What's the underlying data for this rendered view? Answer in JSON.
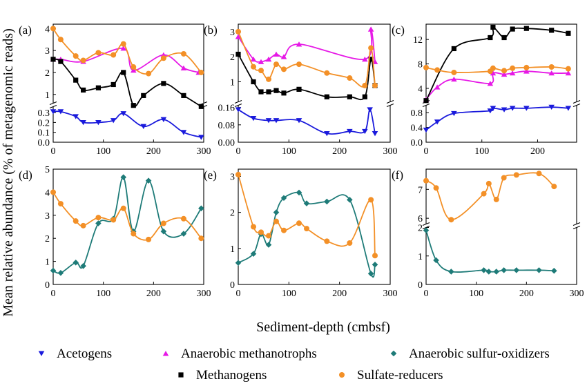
{
  "figure": {
    "ylabel": "Mean relative abundance (% of metagenomic reads)",
    "xlabel": "Sediment-depth (cmbsf)"
  },
  "legend": [
    {
      "name": "Acetogens",
      "marker": "triangle-down",
      "color": "#1a1adc"
    },
    {
      "name": "Anaerobic methanotrophs",
      "marker": "triangle-up",
      "color": "#e619e6"
    },
    {
      "name": "Anaerobic sulfur-oxidizers",
      "marker": "diamond",
      "color": "#1e7b78"
    },
    {
      "name": "Methanogens",
      "marker": "square",
      "color": "#000000"
    },
    {
      "name": "Sulfate-reducers",
      "marker": "circle",
      "color": "#f39027"
    }
  ],
  "chart_data": [
    {
      "type": "scatter",
      "panel_label": "(a)",
      "x_ticks": [
        0,
        100,
        200,
        300
      ],
      "x_tick_labels": [
        "0",
        "100",
        "200",
        "300"
      ],
      "xlim": [
        0,
        300
      ],
      "y_axis_break": true,
      "upper_ylim": [
        0.6,
        4.2
      ],
      "upper_y_ticks": [
        1,
        2,
        3,
        4
      ],
      "upper_y_tick_labels": [
        "1",
        "2",
        "3",
        "4"
      ],
      "lower_ylim": [
        0,
        0.36
      ],
      "lower_y_ticks": [
        0.0,
        0.1,
        0.2,
        0.3
      ],
      "lower_y_tick_labels": [
        "0.0",
        "0.1",
        "0.2",
        "0.3"
      ],
      "series": [
        {
          "name": "Acetogens",
          "region": "lower",
          "x": [
            0,
            15,
            45,
            60,
            90,
            120,
            140,
            180,
            220,
            260,
            295
          ],
          "y": [
            0.31,
            0.31,
            0.26,
            0.2,
            0.2,
            0.22,
            0.29,
            0.16,
            0.23,
            0.1,
            0.05
          ]
        },
        {
          "name": "Anaerobic methanotrophs",
          "region": "upper",
          "x": [
            0,
            15,
            60,
            140,
            160,
            220,
            260,
            290
          ],
          "y": [
            2.6,
            2.6,
            2.5,
            3.1,
            2.1,
            2.8,
            2.2,
            2.0
          ]
        },
        {
          "name": "Methanogens",
          "region": "upper",
          "x": [
            0,
            15,
            45,
            60,
            90,
            120,
            140,
            160,
            180,
            220,
            260,
            295
          ],
          "y": [
            2.6,
            2.5,
            1.65,
            1.2,
            1.3,
            1.45,
            2.0,
            0.5,
            0.95,
            1.5,
            0.95,
            0.45
          ]
        },
        {
          "name": "Sulfate-reducers",
          "region": "upper",
          "x": [
            0,
            15,
            45,
            60,
            90,
            120,
            140,
            160,
            190,
            220,
            260,
            295
          ],
          "y": [
            4.0,
            3.5,
            2.75,
            2.55,
            2.9,
            2.8,
            3.3,
            2.25,
            1.95,
            2.65,
            2.85,
            2.0
          ]
        }
      ]
    },
    {
      "type": "scatter",
      "panel_label": "(b)",
      "x_ticks": [
        0,
        100,
        200,
        300
      ],
      "x_tick_labels": [
        "0",
        "100",
        "200",
        "300"
      ],
      "xlim": [
        0,
        300
      ],
      "y_axis_break": true,
      "upper_ylim": [
        0.2,
        3.3
      ],
      "upper_y_ticks": [
        1,
        2,
        3
      ],
      "upper_y_tick_labels": [
        "1",
        "2",
        "3"
      ],
      "lower_ylim": [
        0,
        0.17
      ],
      "lower_y_ticks": [
        0.0,
        0.08,
        0.16
      ],
      "lower_y_tick_labels": [
        "0.00",
        "0.08",
        "0.16"
      ],
      "series": [
        {
          "name": "Acetogens",
          "region": "lower",
          "x": [
            0,
            30,
            60,
            75,
            120,
            175,
            220,
            250,
            260,
            270
          ],
          "y": [
            0.15,
            0.11,
            0.1,
            0.1,
            0.1,
            0.04,
            0.05,
            0.05,
            0.15,
            0.04
          ]
        },
        {
          "name": "Anaerobic methanotrophs",
          "region": "upper",
          "x": [
            0,
            30,
            45,
            60,
            75,
            90,
            120,
            250,
            262,
            270
          ],
          "y": [
            2.8,
            1.9,
            1.8,
            1.9,
            2.1,
            2.0,
            2.5,
            1.9,
            3.1,
            1.8
          ]
        },
        {
          "name": "Methanogens",
          "region": "upper",
          "x": [
            0,
            30,
            45,
            60,
            75,
            90,
            120,
            175,
            220,
            250,
            262,
            270
          ],
          "y": [
            2.1,
            1.0,
            0.6,
            0.6,
            0.65,
            0.55,
            0.7,
            0.4,
            0.4,
            0.4,
            1.9,
            0.85
          ]
        },
        {
          "name": "Sulfate-reducers",
          "region": "upper",
          "x": [
            0,
            30,
            45,
            60,
            75,
            90,
            120,
            175,
            220,
            250,
            262,
            270
          ],
          "y": [
            3.0,
            1.6,
            1.45,
            1.1,
            1.7,
            1.5,
            1.7,
            1.35,
            1.15,
            0.85,
            2.35,
            0.85
          ]
        }
      ]
    },
    {
      "type": "scatter",
      "panel_label": "(c)",
      "x_ticks": [
        0,
        100,
        200
      ],
      "x_tick_labels": [
        "0",
        "100",
        "200"
      ],
      "xlim": [
        0,
        270
      ],
      "y_axis_break": true,
      "upper_ylim": [
        1.8,
        14.5
      ],
      "upper_y_ticks": [
        4,
        8,
        12
      ],
      "upper_y_tick_labels": [
        "4",
        "8",
        "12"
      ],
      "lower_ylim": [
        0,
        1.0
      ],
      "lower_y_ticks": [
        0.0,
        0.4,
        0.8
      ],
      "lower_y_tick_labels": [
        "0.0",
        "0.4",
        "0.8"
      ],
      "series": [
        {
          "name": "Acetogens",
          "region": "lower",
          "x": [
            0,
            20,
            50,
            115,
            120,
            140,
            155,
            180,
            225,
            255
          ],
          "y": [
            0.33,
            0.55,
            0.78,
            0.85,
            0.92,
            0.88,
            0.92,
            0.92,
            0.95,
            0.92
          ]
        },
        {
          "name": "Anaerobic methanotrophs",
          "region": "upper",
          "x": [
            0,
            20,
            50,
            115,
            120,
            140,
            155,
            180,
            225,
            255
          ],
          "y": [
            2.2,
            4.2,
            5.5,
            4.8,
            6.5,
            6.3,
            6.5,
            6.8,
            6.5,
            6.5
          ]
        },
        {
          "name": "Methanogens",
          "region": "upper",
          "x": [
            0,
            50,
            115,
            120,
            140,
            155,
            180,
            225,
            255
          ],
          "y": [
            2.0,
            10.5,
            12.3,
            14.0,
            12.3,
            13.7,
            13.8,
            13.5,
            13.0
          ]
        },
        {
          "name": "Sulfate-reducers",
          "region": "upper",
          "x": [
            0,
            20,
            50,
            115,
            120,
            140,
            155,
            180,
            225,
            255
          ],
          "y": [
            7.4,
            7.0,
            6.6,
            6.8,
            7.3,
            6.9,
            7.3,
            7.4,
            7.5,
            7.2
          ]
        }
      ]
    },
    {
      "type": "scatter",
      "panel_label": "(d)",
      "x_ticks": [
        0,
        100,
        200,
        300
      ],
      "x_tick_labels": [
        "0",
        "100",
        "200",
        "300"
      ],
      "xlim": [
        0,
        300
      ],
      "y_axis_break": false,
      "ylim": [
        0,
        5
      ],
      "y_ticks": [
        0,
        1,
        2,
        3,
        4,
        5
      ],
      "y_tick_labels": [
        "0",
        "1",
        "2",
        "3",
        "4",
        "5"
      ],
      "series": [
        {
          "name": "Anaerobic sulfur-oxidizers",
          "x": [
            0,
            15,
            45,
            60,
            90,
            120,
            140,
            160,
            190,
            220,
            260,
            295
          ],
          "y": [
            0.6,
            0.5,
            0.95,
            0.8,
            2.65,
            2.85,
            4.65,
            2.3,
            4.5,
            2.3,
            2.2,
            3.3
          ]
        },
        {
          "name": "Sulfate-reducers",
          "x": [
            0,
            15,
            45,
            60,
            90,
            120,
            140,
            160,
            190,
            220,
            260,
            295
          ],
          "y": [
            4.0,
            3.5,
            2.75,
            2.55,
            2.9,
            2.8,
            3.3,
            2.2,
            1.95,
            2.65,
            2.85,
            2.0
          ]
        }
      ]
    },
    {
      "type": "scatter",
      "panel_label": "(e)",
      "x_ticks": [
        0,
        100,
        200,
        300
      ],
      "x_tick_labels": [
        "0",
        "100",
        "200",
        "300"
      ],
      "xlim": [
        0,
        300
      ],
      "y_axis_break": false,
      "ylim": [
        0,
        3.2
      ],
      "y_ticks": [
        0,
        1,
        2,
        3
      ],
      "y_tick_labels": [
        "0",
        "1",
        "2",
        "3"
      ],
      "series": [
        {
          "name": "Anaerobic sulfur-oxidizers",
          "x": [
            0,
            30,
            45,
            60,
            75,
            90,
            120,
            135,
            175,
            220,
            262,
            270
          ],
          "y": [
            0.6,
            0.85,
            1.4,
            1.1,
            2.0,
            2.4,
            2.55,
            2.25,
            2.3,
            2.35,
            0.3,
            0.55
          ]
        },
        {
          "name": "Sulfate-reducers",
          "x": [
            0,
            30,
            45,
            60,
            75,
            90,
            120,
            135,
            175,
            220,
            262,
            270
          ],
          "y": [
            3.05,
            1.6,
            1.45,
            1.35,
            1.75,
            1.5,
            1.7,
            1.55,
            1.2,
            1.15,
            2.35,
            0.8
          ]
        }
      ]
    },
    {
      "type": "scatter",
      "panel_label": "(f)",
      "x_ticks": [
        0,
        100,
        200,
        300
      ],
      "x_tick_labels": [
        "0",
        "100",
        "200",
        "300"
      ],
      "xlim": [
        0,
        300
      ],
      "y_axis_break": true,
      "upper_ylim": [
        5.8,
        7.7
      ],
      "upper_y_ticks": [
        6,
        7
      ],
      "upper_y_tick_labels": [
        "6",
        "7"
      ],
      "lower_ylim": [
        0,
        2.0
      ],
      "lower_y_ticks": [
        0,
        1,
        2
      ],
      "lower_y_tick_labels": [
        "0",
        "1",
        "2"
      ],
      "series": [
        {
          "name": "Anaerobic sulfur-oxidizers",
          "region": "lower",
          "x": [
            0,
            20,
            50,
            115,
            125,
            140,
            155,
            180,
            225,
            255
          ],
          "y": [
            1.9,
            0.85,
            0.45,
            0.5,
            0.45,
            0.45,
            0.5,
            0.5,
            0.5,
            0.48
          ]
        },
        {
          "name": "Sulfate-reducers",
          "region": "upper",
          "x": [
            0,
            20,
            50,
            115,
            125,
            140,
            155,
            180,
            225,
            255
          ],
          "y": [
            7.3,
            7.05,
            5.95,
            6.85,
            7.2,
            6.65,
            7.4,
            7.5,
            7.55,
            7.1
          ]
        }
      ]
    }
  ]
}
